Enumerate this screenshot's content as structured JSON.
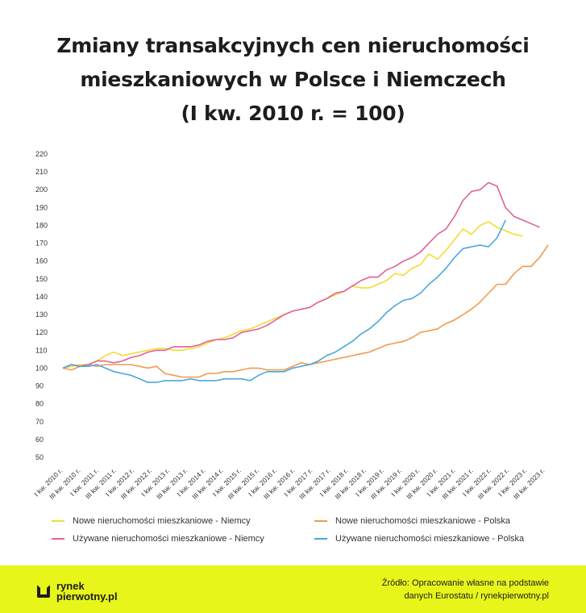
{
  "title_lines": [
    "Zmiany transakcyjnych cen nieruchomości",
    "mieszkaniowych w Polsce i Niemczech",
    "(I kw. 2010 r. = 100)"
  ],
  "chart_data": {
    "type": "line",
    "ylim": [
      50,
      220
    ],
    "yticks": [
      50,
      60,
      70,
      80,
      90,
      100,
      110,
      120,
      130,
      140,
      150,
      160,
      170,
      180,
      190,
      200,
      210,
      220
    ],
    "x_labels": [
      "I kw. 2010 r.",
      "III kw. 2010 r.",
      "I kw. 2011 r.",
      "III kw. 2011 r.",
      "I kw. 2012 r.",
      "III kw. 2012 r.",
      "I kw. 2013 r.",
      "III kw. 2013 r.",
      "I kw. 2014 r.",
      "III kw. 2014 r.",
      "I kw. 2015 r.",
      "III kw. 2015 r.",
      "I kw. 2016 r.",
      "III kw. 2016 r.",
      "I kw. 2017 r.",
      "III kw. 2017 r.",
      "I kw. 2018 r.",
      "III kw. 2018 r.",
      "I kw. 2019 r.",
      "III kw. 2019 r.",
      "I kw. 2020 r.",
      "III kw. 2020 r.",
      "I kw. 2021 r.",
      "III kw. 2021 r.",
      "I kw. 2022 r.",
      "III kw. 2022 r.",
      "I kw. 2023 r.",
      "III kw. 2023 r."
    ],
    "grid": false,
    "legend_position": "bottom",
    "series": [
      {
        "name": "Nowe nieruchomości mieszkaniowe - Niemcy",
        "color": "#f2dc32",
        "values": [
          100,
          101,
          102,
          102,
          104,
          107,
          109,
          107,
          108,
          109,
          110,
          111,
          111,
          110,
          110,
          111,
          112,
          114,
          116,
          117,
          119,
          121,
          122,
          124,
          126,
          128,
          130,
          132,
          133,
          134,
          137,
          139,
          141,
          143,
          146,
          145,
          145,
          147,
          149,
          153,
          152,
          156,
          158,
          164,
          161,
          166,
          172,
          178,
          175,
          180,
          182,
          179,
          177,
          175,
          174
        ]
      },
      {
        "name": "Nowe nieruchomości mieszkaniowe - Polska",
        "color": "#f39a4a",
        "values": [
          100,
          99,
          101,
          102,
          101,
          102,
          102,
          102,
          102,
          101,
          100,
          101,
          97,
          96,
          95,
          95,
          95,
          97,
          97,
          98,
          98,
          99,
          100,
          100,
          99,
          99,
          99,
          101,
          103,
          102,
          103,
          104,
          105,
          106,
          107,
          108,
          109,
          111,
          113,
          114,
          115,
          117,
          120,
          121,
          122,
          125,
          127,
          130,
          133,
          137,
          142,
          147,
          147,
          153,
          157,
          157,
          162,
          169
        ]
      },
      {
        "name": "Używane nieruchomości mieszkaniowe - Niemcy",
        "color": "#e0609a",
        "values": [
          100,
          102,
          101,
          102,
          104,
          104,
          103,
          104,
          106,
          107,
          109,
          110,
          110,
          112,
          112,
          112,
          113,
          115,
          116,
          116,
          117,
          120,
          121,
          122,
          124,
          127,
          130,
          132,
          133,
          134,
          137,
          139,
          142,
          143,
          146,
          149,
          151,
          151,
          155,
          157,
          160,
          162,
          165,
          170,
          175,
          178,
          185,
          194,
          199,
          200,
          204,
          202,
          190,
          185,
          183,
          181,
          179
        ]
      },
      {
        "name": "Używane nieruchomości mieszkaniowe - Polska",
        "color": "#4aa7de",
        "values": [
          100,
          102,
          101,
          101,
          102,
          100,
          98,
          97,
          96,
          94,
          92,
          92,
          93,
          93,
          93,
          94,
          93,
          93,
          93,
          94,
          94,
          94,
          93,
          96,
          98,
          98,
          98,
          100,
          101,
          102,
          104,
          107,
          109,
          112,
          115,
          119,
          122,
          126,
          131,
          135,
          138,
          139,
          142,
          147,
          151,
          156,
          162,
          167,
          168,
          169,
          168,
          173,
          183
        ]
      }
    ]
  },
  "source": {
    "line1": "Źródło: Opracowanie własne na podstawie",
    "line2": "danych Eurostatu / rynekpierwotny.pl"
  },
  "logo": {
    "line1": "rynek",
    "line2": "pierwotny.pl"
  }
}
